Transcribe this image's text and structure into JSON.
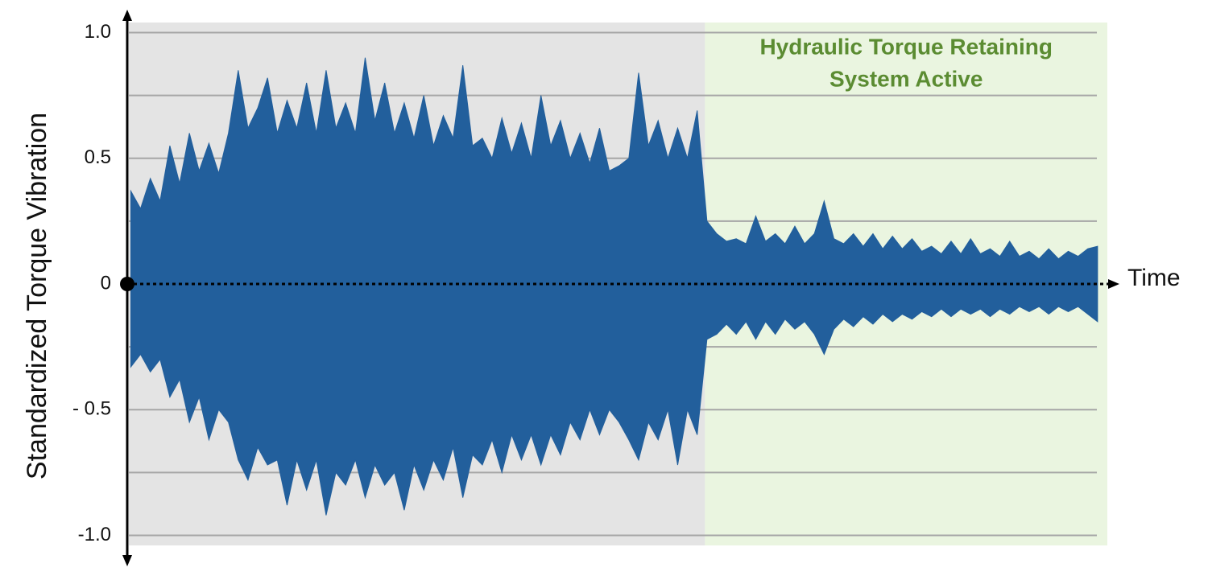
{
  "chart_data": {
    "type": "area",
    "y_label": "Standardized Torque Vibration",
    "x_label": "Time",
    "xlim": [
      -0.2,
      100
    ],
    "ylim": [
      -1.04,
      1.04
    ],
    "yticks": [
      {
        "value": 1,
        "label": "1.0"
      },
      {
        "value": 0.5,
        "label": "0.5"
      },
      0,
      {
        "value": -0.5,
        "label": "- 0.5"
      },
      {
        "value": -1,
        "label": "-1.0"
      }
    ],
    "gridlines": [
      1,
      0.75,
      0.5,
      0.25,
      -0.25,
      -0.5,
      -0.75,
      -1
    ],
    "regions": [
      {
        "from": -0.2,
        "to": 58.8,
        "color": "#e4e4e4"
      },
      {
        "from": 58.8,
        "to": 100,
        "color": "#eaf5e0",
        "label_lines": [
          "Hydraulic Torque Retaining",
          "System Active"
        ],
        "label_color": "#5b8c32"
      }
    ],
    "x": [
      0,
      1,
      2,
      3,
      4,
      5,
      6,
      7,
      8,
      9,
      10,
      11,
      12,
      13,
      14,
      15,
      16,
      17,
      18,
      19,
      20,
      21,
      22,
      23,
      24,
      25,
      26,
      27,
      28,
      29,
      30,
      31,
      32,
      33,
      34,
      35,
      36,
      37,
      38,
      39,
      40,
      41,
      42,
      43,
      44,
      45,
      46,
      47,
      48,
      49,
      50,
      51,
      52,
      53,
      54,
      55,
      56,
      57,
      58,
      59,
      60,
      61,
      62,
      63,
      64,
      65,
      66,
      67,
      68,
      69,
      70,
      71,
      72,
      73,
      74,
      75,
      76,
      77,
      78,
      79,
      80,
      81,
      82,
      83,
      84,
      85,
      86,
      87,
      88,
      89,
      90,
      91,
      92,
      93,
      94,
      95,
      96,
      97,
      98,
      99
    ],
    "series": [
      {
        "color": "#225f9c",
        "values": [
          0.37,
          0.3,
          0.42,
          0.33,
          0.55,
          0.4,
          0.6,
          0.45,
          0.56,
          0.44,
          0.6,
          0.85,
          0.62,
          0.7,
          0.82,
          0.6,
          0.73,
          0.62,
          0.8,
          0.6,
          0.85,
          0.62,
          0.72,
          0.6,
          0.9,
          0.65,
          0.8,
          0.6,
          0.72,
          0.58,
          0.75,
          0.55,
          0.67,
          0.58,
          0.87,
          0.55,
          0.58,
          0.5,
          0.66,
          0.52,
          0.64,
          0.5,
          0.75,
          0.55,
          0.65,
          0.5,
          0.6,
          0.48,
          0.62,
          0.45,
          0.47,
          0.5,
          0.84,
          0.55,
          0.65,
          0.5,
          0.62,
          0.5,
          0.69,
          0.25,
          0.2,
          0.17,
          0.18,
          0.16,
          0.27,
          0.17,
          0.2,
          0.16,
          0.23,
          0.16,
          0.2,
          0.33,
          0.18,
          0.16,
          0.2,
          0.15,
          0.2,
          0.14,
          0.19,
          0.14,
          0.18,
          0.13,
          0.15,
          0.12,
          0.17,
          0.12,
          0.18,
          0.12,
          0.14,
          0.11,
          0.17,
          0.11,
          0.13,
          0.1,
          0.14,
          0.1,
          0.13,
          0.11,
          0.14,
          0.15
        ]
      },
      {
        "color": "#225f9c",
        "values": [
          -0.33,
          -0.28,
          -0.35,
          -0.3,
          -0.45,
          -0.38,
          -0.55,
          -0.45,
          -0.62,
          -0.5,
          -0.55,
          -0.7,
          -0.78,
          -0.65,
          -0.72,
          -0.7,
          -0.88,
          -0.7,
          -0.82,
          -0.7,
          -0.92,
          -0.75,
          -0.8,
          -0.7,
          -0.85,
          -0.72,
          -0.8,
          -0.75,
          -0.9,
          -0.72,
          -0.82,
          -0.7,
          -0.78,
          -0.65,
          -0.85,
          -0.68,
          -0.72,
          -0.62,
          -0.75,
          -0.6,
          -0.7,
          -0.6,
          -0.72,
          -0.6,
          -0.68,
          -0.55,
          -0.62,
          -0.5,
          -0.6,
          -0.5,
          -0.55,
          -0.62,
          -0.7,
          -0.55,
          -0.62,
          -0.5,
          -0.72,
          -0.5,
          -0.6,
          -0.22,
          -0.2,
          -0.16,
          -0.2,
          -0.15,
          -0.22,
          -0.15,
          -0.2,
          -0.14,
          -0.18,
          -0.15,
          -0.2,
          -0.28,
          -0.18,
          -0.14,
          -0.17,
          -0.13,
          -0.16,
          -0.12,
          -0.15,
          -0.12,
          -0.14,
          -0.11,
          -0.13,
          -0.1,
          -0.13,
          -0.1,
          -0.12,
          -0.1,
          -0.13,
          -0.1,
          -0.12,
          -0.09,
          -0.11,
          -0.09,
          -0.12,
          -0.09,
          -0.11,
          -0.09,
          -0.12,
          -0.15
        ]
      }
    ]
  }
}
